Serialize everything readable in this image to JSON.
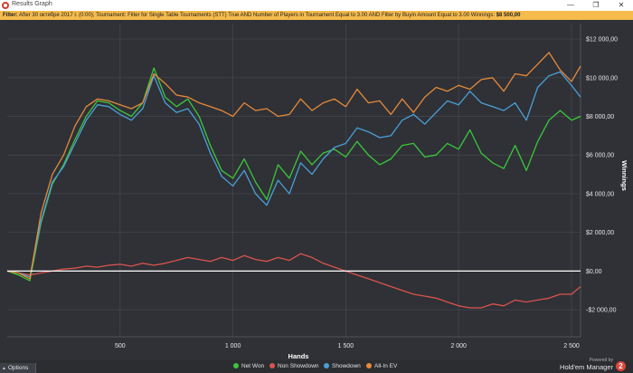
{
  "window": {
    "title": "Results Graph",
    "minimize_glyph": "—",
    "restore_glyph": "❐",
    "close_glyph": "✕"
  },
  "filter_bar": {
    "prefix": "Filter:",
    "text": "After 30 октября 2017 г. (0:00); Tournament: Filter for Single Table Tournaments (STT) True AND Number of Players in Tournament Equal to 3.00 AND Filter by Buyin Amount Equal to 3.00",
    "winnings_label": "Winnings:",
    "winnings_value": "$8 500,00"
  },
  "bottom": {
    "options_label": "Options",
    "powered_by": "Powered by",
    "brand_name": "Hold'em Manager",
    "brand_logo": "2"
  },
  "chart_data": {
    "type": "line",
    "xlabel": "Hands",
    "ylabel": "Winnings",
    "xlim": [
      0,
      2540
    ],
    "ylim": [
      -3400,
      12800
    ],
    "x_ticks": [
      500,
      1000,
      1500,
      2000,
      2500
    ],
    "x_tick_labels": [
      "500",
      "1 000",
      "1 500",
      "2 000",
      "2 500"
    ],
    "y_ticks": [
      -2000,
      0,
      2000,
      4000,
      6000,
      8000,
      10000,
      12000
    ],
    "y_tick_labels": [
      "-$2 000,00",
      "$0,00",
      "$2 000,00",
      "$4 000,00",
      "$6 000,00",
      "$8 000,00",
      "$10 000,00",
      "$12 000,00"
    ],
    "grid": true,
    "zero_line": true,
    "legend_position": "bottom",
    "series": [
      {
        "name": "Net Won",
        "color": "#3bc73b",
        "x": [
          0,
          50,
          100,
          150,
          200,
          250,
          300,
          350,
          400,
          450,
          500,
          550,
          600,
          650,
          700,
          750,
          800,
          850,
          900,
          950,
          1000,
          1050,
          1100,
          1150,
          1200,
          1250,
          1300,
          1350,
          1400,
          1450,
          1500,
          1550,
          1600,
          1650,
          1700,
          1750,
          1800,
          1850,
          1900,
          1950,
          2000,
          2050,
          2100,
          2150,
          2200,
          2250,
          2300,
          2350,
          2400,
          2450,
          2500,
          2540
        ],
        "y": [
          0,
          -200,
          -500,
          2500,
          4500,
          5500,
          6800,
          8000,
          8800,
          8700,
          8300,
          8000,
          8700,
          10500,
          9000,
          8500,
          8900,
          8000,
          6500,
          5200,
          4800,
          5800,
          4600,
          3700,
          5500,
          4800,
          6200,
          5500,
          6100,
          6300,
          5900,
          6700,
          6000,
          5500,
          5800,
          6500,
          6600,
          5900,
          6000,
          6600,
          6300,
          7300,
          6100,
          5600,
          5300,
          6500,
          5200,
          6700,
          7800,
          8300,
          7800,
          8000
        ]
      },
      {
        "name": "Non Showdown",
        "color": "#d9534f",
        "x": [
          0,
          50,
          100,
          150,
          200,
          250,
          300,
          350,
          400,
          450,
          500,
          550,
          600,
          650,
          700,
          750,
          800,
          850,
          900,
          950,
          1000,
          1050,
          1100,
          1150,
          1200,
          1250,
          1300,
          1350,
          1400,
          1450,
          1500,
          1550,
          1600,
          1650,
          1700,
          1750,
          1800,
          1850,
          1900,
          1950,
          2000,
          2050,
          2100,
          2150,
          2200,
          2250,
          2300,
          2350,
          2400,
          2450,
          2500,
          2540
        ],
        "y": [
          0,
          -100,
          -200,
          -100,
          0,
          100,
          150,
          250,
          200,
          300,
          350,
          250,
          400,
          300,
          400,
          550,
          700,
          600,
          500,
          700,
          550,
          800,
          600,
          500,
          700,
          550,
          900,
          700,
          400,
          200,
          0,
          -200,
          -400,
          -600,
          -800,
          -1000,
          -1200,
          -1300,
          -1400,
          -1600,
          -1800,
          -1900,
          -1900,
          -1700,
          -1800,
          -1500,
          -1600,
          -1500,
          -1400,
          -1200,
          -1200,
          -800
        ]
      },
      {
        "name": "Showdown",
        "color": "#4a9fd8",
        "x": [
          0,
          50,
          100,
          150,
          200,
          250,
          300,
          350,
          400,
          450,
          500,
          550,
          600,
          650,
          700,
          750,
          800,
          850,
          900,
          950,
          1000,
          1050,
          1100,
          1150,
          1200,
          1250,
          1300,
          1350,
          1400,
          1450,
          1500,
          1550,
          1600,
          1650,
          1700,
          1750,
          1800,
          1850,
          1900,
          1950,
          2000,
          2050,
          2100,
          2150,
          2200,
          2250,
          2300,
          2350,
          2400,
          2450,
          2500,
          2540
        ],
        "y": [
          0,
          -100,
          -300,
          2600,
          4600,
          5400,
          6600,
          7800,
          8600,
          8500,
          8100,
          7800,
          8400,
          10100,
          8700,
          8200,
          8400,
          7600,
          6100,
          4900,
          4400,
          5200,
          4000,
          3400,
          4700,
          4000,
          5600,
          5000,
          5800,
          6400,
          6600,
          7400,
          7200,
          6900,
          7000,
          7800,
          8100,
          7600,
          8200,
          8800,
          8600,
          9300,
          8700,
          8500,
          8300,
          8700,
          7800,
          9500,
          10100,
          10300,
          9600,
          9000
        ]
      },
      {
        "name": "All-In EV",
        "color": "#e6893a",
        "x": [
          0,
          50,
          100,
          150,
          200,
          250,
          300,
          350,
          400,
          450,
          500,
          550,
          600,
          650,
          700,
          750,
          800,
          850,
          900,
          950,
          1000,
          1050,
          1100,
          1150,
          1200,
          1250,
          1300,
          1350,
          1400,
          1450,
          1500,
          1550,
          1600,
          1650,
          1700,
          1750,
          1800,
          1850,
          1900,
          1950,
          2000,
          2050,
          2100,
          2150,
          2200,
          2250,
          2300,
          2350,
          2400,
          2450,
          2500,
          2540
        ],
        "y": [
          0,
          -100,
          -400,
          3000,
          5000,
          6000,
          7500,
          8500,
          8900,
          8800,
          8600,
          8400,
          8700,
          10200,
          9700,
          9100,
          9000,
          8700,
          8500,
          8300,
          8000,
          8700,
          8300,
          8400,
          8000,
          8100,
          8900,
          8300,
          8700,
          8900,
          8500,
          9400,
          8700,
          8800,
          8100,
          8900,
          8200,
          9000,
          9500,
          9300,
          9600,
          9400,
          9900,
          10000,
          9300,
          10200,
          10100,
          10700,
          11300,
          10400,
          9800,
          10600
        ]
      }
    ]
  }
}
